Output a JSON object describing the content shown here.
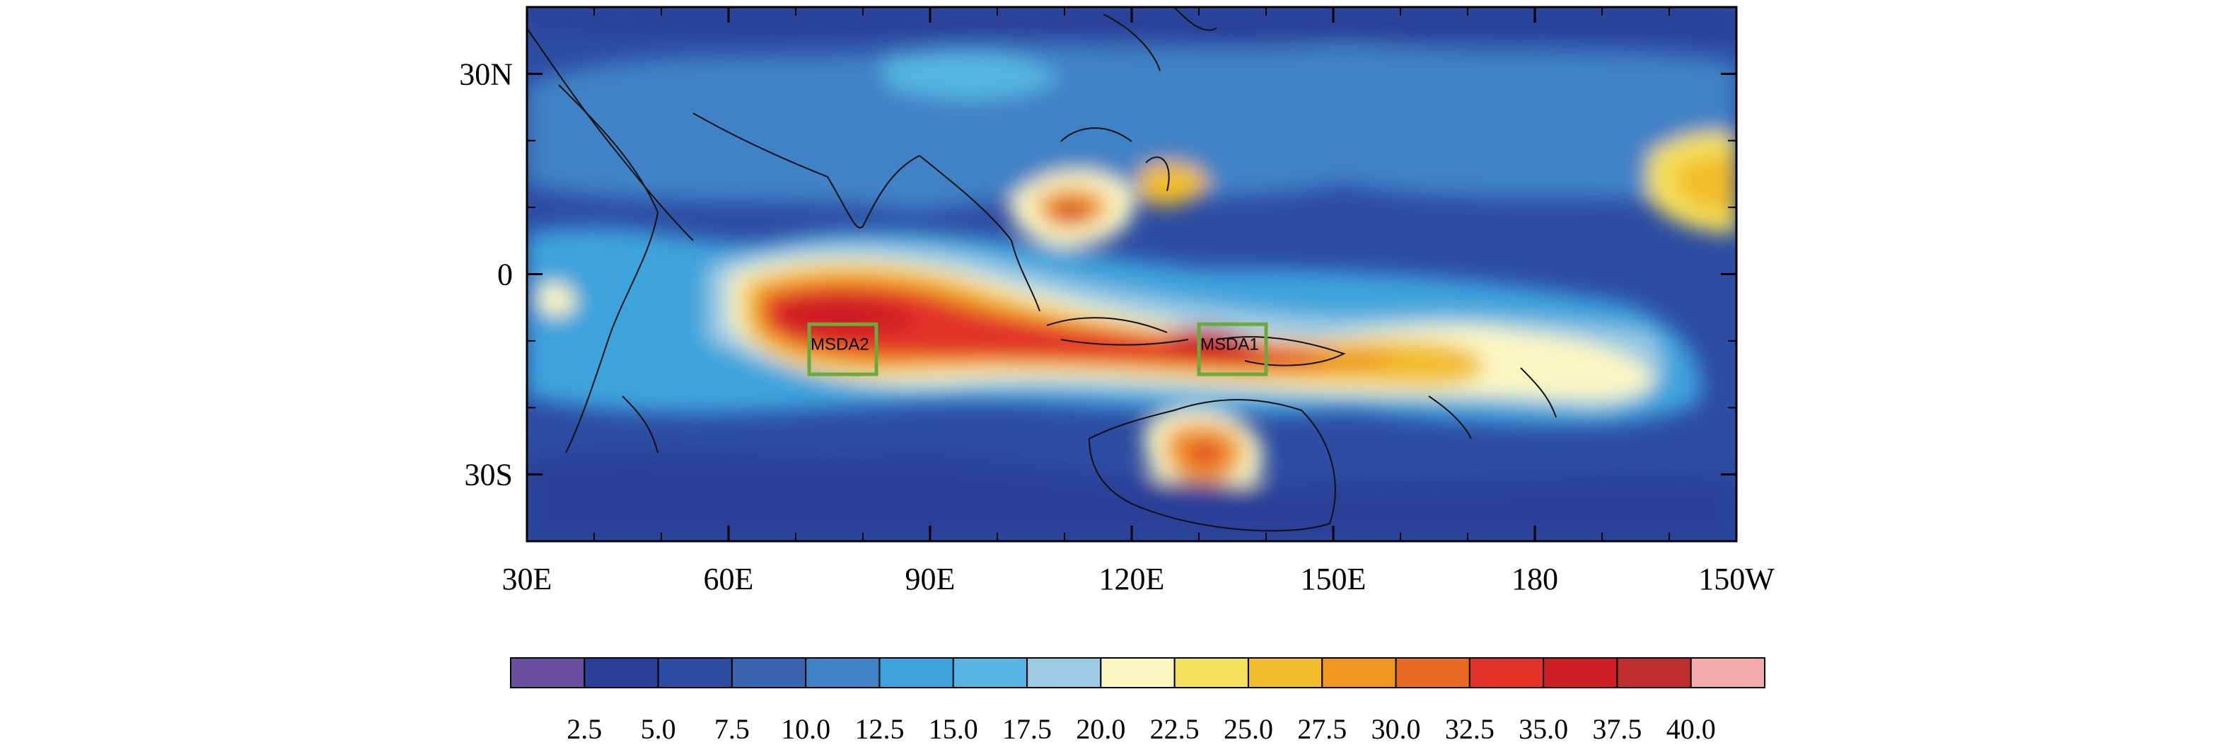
{
  "map": {
    "lon_range": [
      30,
      210
    ],
    "lat_range": [
      -40,
      40
    ],
    "lon_ticks": [
      {
        "lon": 30,
        "label": "30E"
      },
      {
        "lon": 60,
        "label": "60E"
      },
      {
        "lon": 90,
        "label": "90E"
      },
      {
        "lon": 120,
        "label": "120E"
      },
      {
        "lon": 150,
        "label": "150E"
      },
      {
        "lon": 180,
        "label": "180"
      },
      {
        "lon": 210,
        "label": "150W"
      }
    ],
    "lat_ticks": [
      {
        "lat": 30,
        "label": "30N"
      },
      {
        "lat": 0,
        "label": "0"
      },
      {
        "lat": -30,
        "label": "30S"
      }
    ],
    "boxes": [
      {
        "label": "MSDA2",
        "lon_min": 72,
        "lon_max": 82,
        "lat_min": -15,
        "lat_max": -7.5
      },
      {
        "label": "MSDA1",
        "lon_min": 130,
        "lon_max": 140,
        "lat_min": -15,
        "lat_max": -7.5
      }
    ],
    "box_color": "#6aaa3a"
  },
  "colorbar": {
    "levels": [
      "2.5",
      "5.0",
      "7.5",
      "10.0",
      "12.5",
      "15.0",
      "17.5",
      "20.0",
      "22.5",
      "25.0",
      "27.5",
      "30.0",
      "32.5",
      "35.0",
      "37.5",
      "40.0"
    ],
    "colors": [
      "#6a4ea0",
      "#2a3f98",
      "#2d4da2",
      "#3a64b0",
      "#3f82c6",
      "#3ea3dc",
      "#57b3e3",
      "#9bcbe3",
      "#fbf7c3",
      "#f4e05a",
      "#f2bd2c",
      "#ef9621",
      "#e96b23",
      "#e2322a",
      "#ce1f24",
      "#bf2e2c",
      "#f3aaaa"
    ]
  }
}
